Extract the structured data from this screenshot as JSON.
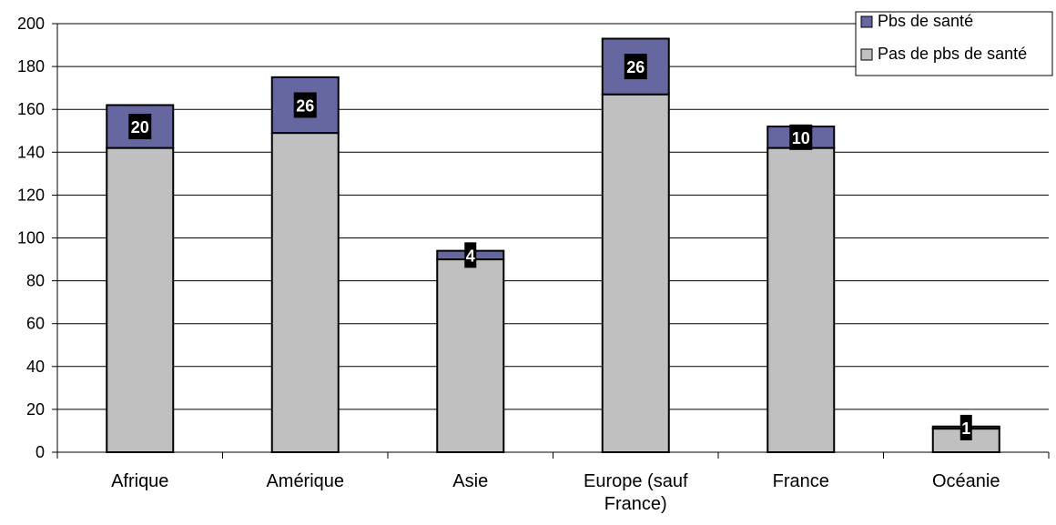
{
  "chart_data": {
    "type": "bar",
    "stacked": true,
    "categories": [
      "Afrique",
      "Amérique",
      "Asie",
      "Europe (sauf France)",
      "France",
      "Océanie"
    ],
    "series": [
      {
        "name": "Pas de pbs de santé",
        "values": [
          142,
          149,
          90,
          167,
          142,
          11
        ],
        "color": "#c0c0c0"
      },
      {
        "name": "Pbs de santé",
        "values": [
          20,
          26,
          4,
          26,
          10,
          1
        ],
        "color": "#6666a0"
      }
    ],
    "data_labels": [
      "20",
      "26",
      "4",
      "26",
      "10",
      "1"
    ],
    "ylim": [
      0,
      200
    ],
    "yticks": [
      0,
      20,
      40,
      60,
      80,
      100,
      120,
      140,
      160,
      180,
      200
    ],
    "grid": true,
    "legend_position": "top-right",
    "legend_entries": [
      "Pbs de santé",
      "Pas de pbs de santé"
    ],
    "title": "",
    "xlabel": "",
    "ylabel": ""
  }
}
